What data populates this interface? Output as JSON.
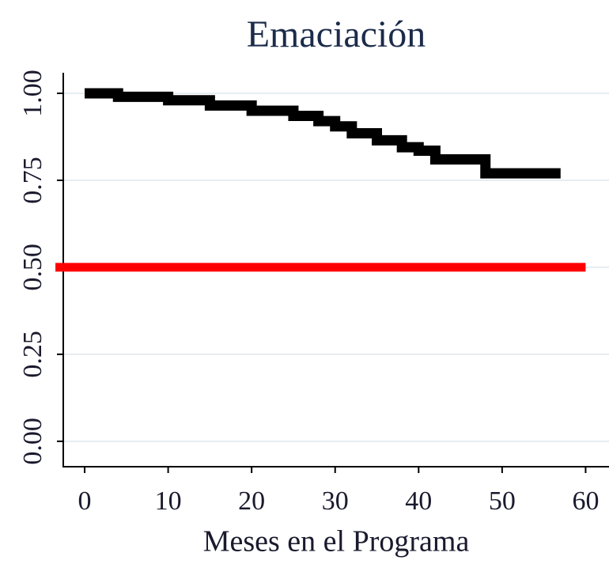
{
  "chart_data": {
    "type": "line",
    "title": "Emaciación",
    "x_label": "Meses en el Programa",
    "series": [
      {
        "color": "#000000",
        "step": "post",
        "x": [
          0,
          4,
          10,
          15,
          20,
          25,
          28,
          30,
          32,
          35,
          38,
          40,
          42,
          48,
          57
        ],
        "values": [
          1.0,
          0.99,
          0.98,
          0.965,
          0.95,
          0.935,
          0.92,
          0.905,
          0.885,
          0.865,
          0.845,
          0.835,
          0.81,
          0.77,
          0.77
        ]
      },
      {
        "color": "#ff0000",
        "x": [
          -3.5,
          60
        ],
        "values": [
          0.5,
          0.5
        ]
      }
    ],
    "xlim": [
      -2.56,
      62.8
    ],
    "ylim": [
      -0.073,
      1.059
    ],
    "xticks": [
      0,
      10,
      20,
      30,
      40,
      50,
      60
    ],
    "yticks": [
      {
        "value": 0,
        "label": "0.00"
      },
      {
        "value": 0.25,
        "label": "0.25"
      },
      {
        "value": 0.5,
        "label": "0.50"
      },
      {
        "value": 0.75,
        "label": "0.75"
      },
      {
        "value": 1,
        "label": "1.00"
      }
    ],
    "grid": true
  }
}
